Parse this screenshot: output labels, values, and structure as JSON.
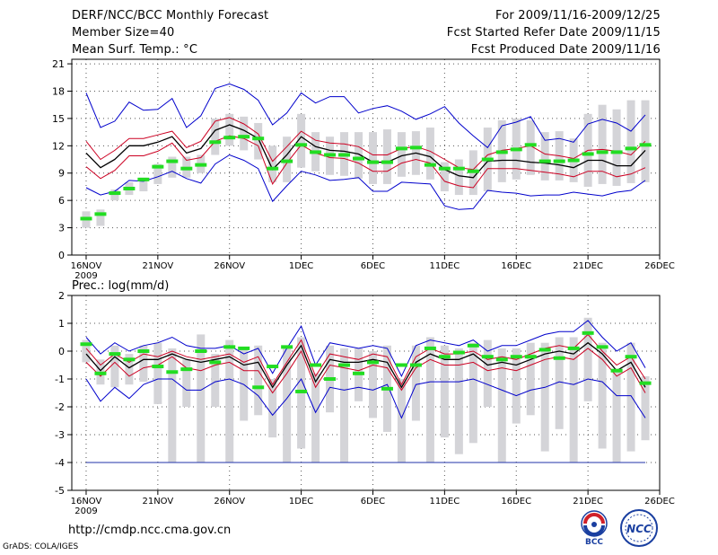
{
  "header": {
    "title": "DERF/NCC/BCC Monthly Forecast",
    "member_size": "Member Size=40",
    "temp_label": "Mean Surf. Temp.: °C",
    "period": "For 2009/11/16-2009/12/25",
    "start_date": "Fcst Started Refer Date 2009/11/15",
    "produced_date": "Fcst Produced Date 2009/11/16"
  },
  "footer": {
    "url": "http://cmdp.ncc.cma.gov.cn",
    "credit": "GrADS: COLA/IGES",
    "logo_left_text": "BCC",
    "logo_right_text": "NCC"
  },
  "colors": {
    "envelope": "#0000cc",
    "spread": "#cc0022",
    "mean": "#000000",
    "bar": "#d4d4d8",
    "climo": "#22dd22",
    "floor": "#2233aa"
  },
  "chart_data": [
    {
      "type": "line",
      "title": "Mean Surf. Temp.: °C",
      "x": [
        1,
        2,
        3,
        4,
        5,
        6,
        7,
        8,
        9,
        10,
        11,
        12,
        13,
        14,
        15,
        16,
        17,
        18,
        19,
        20,
        21,
        22,
        23,
        24,
        25,
        26,
        27,
        28,
        29,
        30,
        31,
        32,
        33,
        34,
        35,
        36,
        37,
        38,
        39,
        40
      ],
      "x_ticks": [
        {
          "x": 1,
          "label": "16NOV"
        },
        {
          "x": 6,
          "label": "21NOV"
        },
        {
          "x": 11,
          "label": "26NOV"
        },
        {
          "x": 16,
          "label": "1DEC"
        },
        {
          "x": 21,
          "label": "6DEC"
        },
        {
          "x": 26,
          "label": "11DEC"
        },
        {
          "x": 31,
          "label": "16DEC"
        },
        {
          "x": 36,
          "label": "21DEC"
        },
        {
          "x": 41,
          "label": "26DEC"
        }
      ],
      "year_label": "2009",
      "xlim": [
        0,
        41
      ],
      "ylim": [
        0,
        21.5
      ],
      "y_ticks": [
        0,
        3,
        6,
        9,
        12,
        15,
        18,
        21
      ],
      "series": [
        {
          "name": "max",
          "role": "envelope",
          "values": [
            17.8,
            14,
            14.7,
            16.8,
            15.9,
            16,
            17.2,
            14,
            15.3,
            18.3,
            18.8,
            18.2,
            17,
            14.3,
            15.6,
            17.8,
            16.7,
            17.4,
            17.4,
            15.6,
            16.1,
            16.4,
            15.8,
            14.9,
            15.5,
            16.3,
            14.5,
            13.1,
            11.8,
            14.2,
            14.6,
            15.2,
            12.6,
            12.8,
            12.4,
            14.4,
            14.9,
            14.5,
            13.6,
            15.4
          ]
        },
        {
          "name": "upper",
          "role": "spread",
          "values": [
            12.5,
            10.5,
            11.5,
            12.8,
            12.8,
            13.2,
            13.6,
            11.8,
            12.5,
            14.7,
            15.1,
            14.4,
            13.3,
            10.3,
            11.9,
            13.6,
            12.6,
            12.3,
            12.2,
            11.9,
            11,
            11,
            11.7,
            11.9,
            11.4,
            10.5,
            9.6,
            9.4,
            11,
            11.5,
            11.7,
            12,
            11.1,
            10.9,
            10.6,
            11.5,
            11.6,
            11.4,
            11,
            12.5
          ]
        },
        {
          "name": "mean",
          "role": "mean",
          "values": [
            11.2,
            9.6,
            10.5,
            12,
            12,
            12.4,
            13,
            11.2,
            11.7,
            13.7,
            14.3,
            13.7,
            12.8,
            9.4,
            11,
            13,
            11.9,
            11.5,
            11.4,
            11.1,
            10.2,
            10.2,
            10.9,
            11.2,
            10.8,
            9.4,
            8.7,
            8.5,
            10.3,
            10.4,
            10.4,
            10.2,
            10.1,
            9.9,
            9.6,
            10.4,
            10.4,
            9.8,
            9.8,
            11.5
          ]
        },
        {
          "name": "lower",
          "role": "spread",
          "values": [
            9.7,
            8.4,
            9.3,
            10.9,
            10.9,
            11.4,
            12.3,
            10.4,
            10.7,
            12.5,
            13.1,
            12.8,
            12,
            7.8,
            10.1,
            12.1,
            11.2,
            10.7,
            10.6,
            10.1,
            9.2,
            9.2,
            10.1,
            10.5,
            10.1,
            8.1,
            7.6,
            7.4,
            9.5,
            9.5,
            9.5,
            9.3,
            9.1,
            8.9,
            8.6,
            9.2,
            9.2,
            8.6,
            8.9,
            9.6
          ]
        },
        {
          "name": "min",
          "role": "envelope",
          "values": [
            7.4,
            6.6,
            7,
            8.2,
            8.1,
            8.6,
            9.2,
            8.4,
            7.9,
            10,
            11,
            10.4,
            9.5,
            5.9,
            7.6,
            9.2,
            8.8,
            8.2,
            8.3,
            8.5,
            7,
            7,
            8,
            7.9,
            7.8,
            5.4,
            5,
            5.1,
            7.1,
            6.9,
            6.8,
            6.5,
            6.6,
            6.6,
            6.9,
            6.7,
            6.5,
            6.9,
            7.1,
            8.2
          ]
        }
      ],
      "bars": {
        "low": [
          3,
          3.2,
          6,
          6.6,
          7,
          7.8,
          8.5,
          8.5,
          9,
          11,
          12,
          11.5,
          10.5,
          8,
          8,
          9.6,
          9.2,
          8.8,
          8.7,
          8.4,
          7.8,
          7.8,
          8.6,
          8.8,
          8.3,
          7,
          6.6,
          6.6,
          7,
          8,
          8.3,
          8.8,
          8.2,
          8.2,
          8,
          7.5,
          7.8,
          7.6,
          7.9,
          8
        ],
        "high": [
          4.8,
          5,
          7.2,
          8,
          8.5,
          10,
          10.8,
          10.8,
          11,
          15,
          15.5,
          15.2,
          14.5,
          12,
          13,
          15.5,
          13.5,
          13,
          13.5,
          13.5,
          13.5,
          13.8,
          13.5,
          13.6,
          14,
          10.2,
          10.5,
          11.5,
          14,
          14.8,
          15,
          14.8,
          13.5,
          13.6,
          12.8,
          15.5,
          16.5,
          16,
          17,
          17
        ]
      },
      "climo": [
        4,
        4.5,
        6.8,
        7.3,
        8.3,
        9.7,
        10.3,
        9.5,
        9.9,
        12.4,
        12.9,
        13,
        12.8,
        9.5,
        10.3,
        12.1,
        11.3,
        11,
        11,
        10.6,
        10.2,
        10.2,
        11.7,
        11.8,
        9.9,
        9.5,
        9.5,
        9.2,
        10.5,
        11.3,
        11.6,
        12.1,
        10.3,
        10.3,
        10.4,
        11.1,
        11.3,
        11.3,
        11.7,
        12.1
      ]
    },
    {
      "type": "line",
      "title": "Prec.: log(mm/d)",
      "x": [
        1,
        2,
        3,
        4,
        5,
        6,
        7,
        8,
        9,
        10,
        11,
        12,
        13,
        14,
        15,
        16,
        17,
        18,
        19,
        20,
        21,
        22,
        23,
        24,
        25,
        26,
        27,
        28,
        29,
        30,
        31,
        32,
        33,
        34,
        35,
        36,
        37,
        38,
        39,
        40
      ],
      "x_ticks": [
        {
          "x": 1,
          "label": "16NOV"
        },
        {
          "x": 6,
          "label": "21NOV"
        },
        {
          "x": 11,
          "label": "26NOV"
        },
        {
          "x": 16,
          "label": "1DEC"
        },
        {
          "x": 21,
          "label": "6DEC"
        },
        {
          "x": 26,
          "label": "11DEC"
        },
        {
          "x": 31,
          "label": "16DEC"
        },
        {
          "x": 36,
          "label": "21DEC"
        },
        {
          "x": 41,
          "label": "26DEC"
        }
      ],
      "year_label": "2009",
      "xlim": [
        0,
        41
      ],
      "ylim": [
        -5,
        2
      ],
      "y_ticks": [
        -5,
        -4,
        -3,
        -2,
        -1,
        0,
        1,
        2
      ],
      "floor_value": -4,
      "series": [
        {
          "name": "max",
          "role": "envelope",
          "values": [
            0.5,
            -0.1,
            0.3,
            0,
            0.2,
            0.3,
            0.5,
            0.2,
            0.1,
            0.1,
            0.2,
            -0.1,
            0.1,
            -0.8,
            0.1,
            0.9,
            -0.5,
            0.3,
            0.2,
            0.1,
            0.2,
            0.1,
            -0.9,
            0.2,
            0.4,
            0.3,
            0.2,
            0.4,
            0,
            0.2,
            0.2,
            0.4,
            0.6,
            0.7,
            0.7,
            1.1,
            0.5,
            0,
            0.3,
            -0.6
          ]
        },
        {
          "name": "upper",
          "role": "spread",
          "values": [
            0.1,
            -0.5,
            -0.1,
            -0.4,
            -0.1,
            -0.2,
            0,
            -0.2,
            -0.3,
            -0.2,
            -0.1,
            -0.4,
            -0.2,
            -1.2,
            -0.4,
            0.4,
            -0.9,
            -0.1,
            -0.2,
            -0.3,
            -0.1,
            -0.2,
            -1.2,
            -0.2,
            0.1,
            -0.1,
            -0.1,
            0,
            -0.3,
            -0.2,
            -0.3,
            -0.1,
            0.1,
            0.2,
            0.1,
            0.6,
            0,
            -0.5,
            -0.2,
            -1
          ]
        },
        {
          "name": "mean",
          "role": "mean",
          "values": [
            -0.1,
            -0.7,
            -0.2,
            -0.6,
            -0.3,
            -0.3,
            -0.1,
            -0.3,
            -0.4,
            -0.3,
            -0.2,
            -0.5,
            -0.4,
            -1.3,
            -0.5,
            0.2,
            -1.1,
            -0.3,
            -0.4,
            -0.4,
            -0.3,
            -0.4,
            -1.3,
            -0.4,
            -0.1,
            -0.3,
            -0.3,
            -0.1,
            -0.5,
            -0.4,
            -0.5,
            -0.3,
            -0.1,
            0,
            -0.1,
            0.3,
            -0.1,
            -0.7,
            -0.4,
            -1.3
          ]
        },
        {
          "name": "lower",
          "role": "spread",
          "values": [
            -0.4,
            -0.9,
            -0.4,
            -0.9,
            -0.6,
            -0.5,
            -0.2,
            -0.6,
            -0.7,
            -0.5,
            -0.4,
            -0.7,
            -0.7,
            -1.5,
            -0.8,
            0,
            -1.3,
            -0.5,
            -0.6,
            -0.7,
            -0.5,
            -0.6,
            -1.4,
            -0.6,
            -0.3,
            -0.5,
            -0.5,
            -0.4,
            -0.7,
            -0.6,
            -0.7,
            -0.5,
            -0.3,
            -0.2,
            -0.3,
            0.1,
            -0.3,
            -0.9,
            -0.6,
            -1.5
          ]
        },
        {
          "name": "min",
          "role": "envelope",
          "values": [
            -1,
            -1.8,
            -1.3,
            -1.7,
            -1.2,
            -1,
            -1,
            -1.4,
            -1.4,
            -1.1,
            -1,
            -1.2,
            -1.6,
            -2.3,
            -1.7,
            -1,
            -2.2,
            -1.3,
            -1.4,
            -1.3,
            -1.4,
            -1.2,
            -2.4,
            -1.2,
            -1.1,
            -1.1,
            -1.1,
            -1,
            -1.2,
            -1.4,
            -1.6,
            -1.4,
            -1.3,
            -1.1,
            -1.2,
            -1,
            -1.1,
            -1.6,
            -1.6,
            -2.4
          ]
        }
      ],
      "bars": {
        "low": [
          -0.4,
          -1.2,
          -1.3,
          -1.2,
          -1.1,
          -1.9,
          -4,
          -2,
          -4,
          -2,
          -4,
          -2.5,
          -2.3,
          -3.1,
          -4,
          -3.5,
          -4,
          -2.2,
          -4,
          -1.8,
          -2.4,
          -2.9,
          -4,
          -2.5,
          -4,
          -3.1,
          -3.7,
          -3.3,
          -2,
          -4,
          -2.6,
          -2.3,
          -3.6,
          -2.8,
          -4,
          -1.8,
          -3.5,
          -4,
          -3.6,
          -3.2
        ],
        "high": [
          0.4,
          -0.3,
          0.2,
          -0.1,
          0.2,
          0.3,
          0.1,
          -0.3,
          0.6,
          -0.1,
          0.4,
          0.1,
          0.2,
          -1,
          0.1,
          0.5,
          -0.8,
          0.2,
          0.1,
          0.1,
          0,
          0.2,
          -1,
          0.2,
          0.5,
          0.2,
          0.1,
          0.3,
          0.4,
          0.1,
          0.1,
          0.3,
          0.3,
          0.5,
          0.5,
          1.2,
          0.3,
          -0.7,
          0.3,
          -0.9
        ]
      },
      "climo": [
        0.25,
        -0.8,
        -0.1,
        -0.3,
        0,
        -0.55,
        -0.75,
        -0.65,
        0,
        -0.4,
        0.15,
        0.1,
        -1.3,
        -0.55,
        0.15,
        -1.45,
        -0.5,
        -1,
        -0.5,
        -0.8,
        -0.4,
        -1.35,
        -0.5,
        -0.5,
        0.1,
        -0.2,
        -0.05,
        0.2,
        -0.2,
        -0.3,
        -0.2,
        -0.2,
        0.05,
        -0.25,
        0.1,
        0.65,
        0.15,
        -0.7,
        -0.2,
        -1.15
      ]
    }
  ]
}
